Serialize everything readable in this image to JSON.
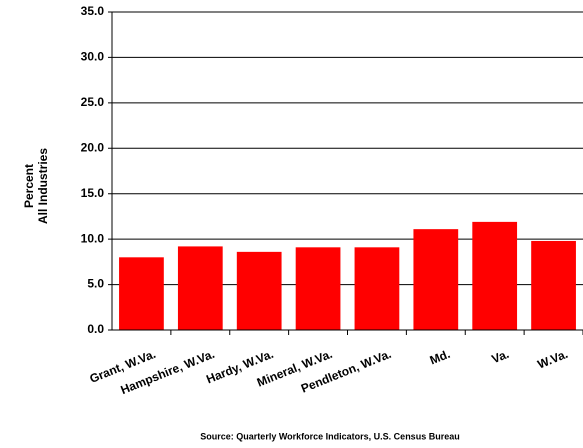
{
  "chart_data": {
    "type": "bar",
    "y_label": [
      "Percent",
      "All Industries"
    ],
    "source": "Source: Quarterly Workforce Indicators, U.S. Census Bureau",
    "categories": [
      "Grant, W.Va.",
      "Hampshire, W.Va.",
      "Hardy, W.Va.",
      "Mineral, W.Va.",
      "Pendleton, W.Va.",
      "Md.",
      "Va.",
      "W.Va."
    ],
    "values": [
      8.0,
      9.2,
      8.6,
      9.1,
      9.1,
      11.1,
      11.9,
      9.8
    ],
    "color": "#ff0000",
    "ylim": [
      0,
      35
    ],
    "yticks": [
      {
        "value": 0,
        "label": "0.0"
      },
      {
        "value": 5,
        "label": "5.0"
      },
      {
        "value": 10,
        "label": "10.0"
      },
      {
        "value": 15,
        "label": "15.0"
      },
      {
        "value": 20,
        "label": "20.0"
      },
      {
        "value": 25,
        "label": "25.0"
      },
      {
        "value": 30,
        "label": "30.0"
      },
      {
        "value": 35,
        "label": "35.0"
      }
    ],
    "grid": true
  }
}
